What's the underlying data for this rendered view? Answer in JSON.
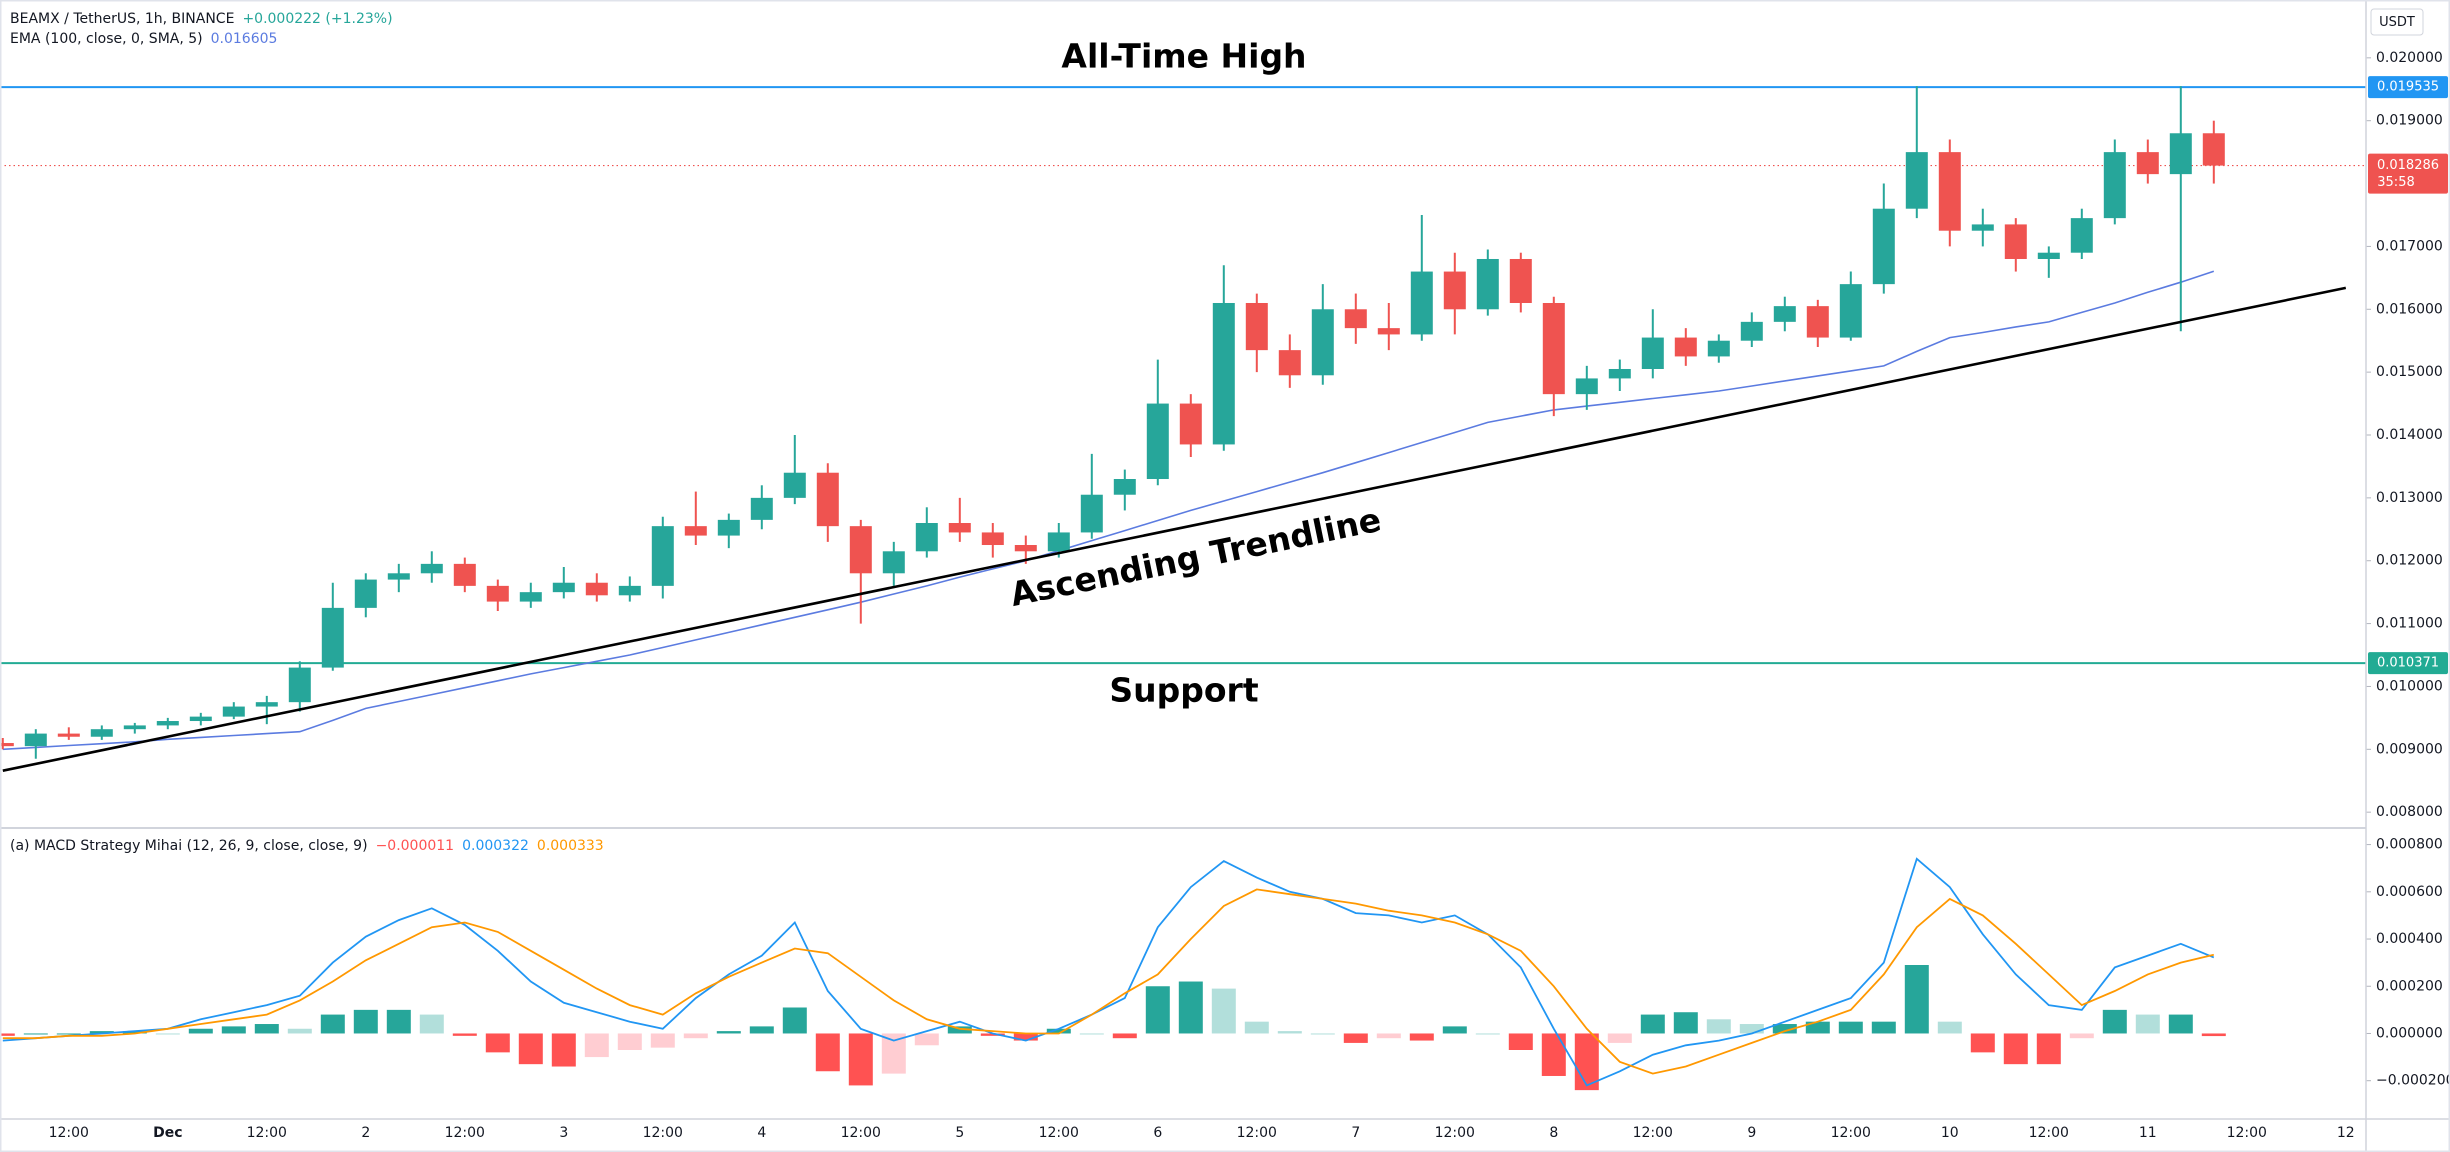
{
  "chart_data": [
    {
      "type": "candlestick",
      "title": "BEAMX / TetherUS, 1h, BINANCE",
      "change": "+0.000222 (+1.23%)",
      "currency": "USDT",
      "countdown": "35:58",
      "categories": [
        null,
        null,
        "12:00",
        null,
        null,
        "Dec",
        null,
        null,
        "12:00",
        null,
        null,
        "2",
        null,
        null,
        "12:00",
        null,
        null,
        "3",
        null,
        null,
        "12:00",
        null,
        null,
        "4",
        null,
        null,
        "12:00",
        null,
        null,
        "5",
        null,
        null,
        "12:00",
        null,
        null,
        "6",
        null,
        null,
        "12:00",
        null,
        null,
        "7",
        null,
        null,
        "12:00",
        null,
        null,
        "8",
        null,
        null,
        "12:00",
        null,
        null,
        "9",
        null,
        null,
        "12:00",
        null,
        null,
        "10",
        null,
        null,
        "12:00",
        null,
        null,
        "11",
        null,
        null,
        "12:00",
        null,
        null,
        "12"
      ],
      "open": [
        0.0091,
        0.00905,
        0.00925,
        0.0092,
        0.00932,
        0.00938,
        0.00945,
        0.00952,
        0.00968,
        0.00975,
        0.0103,
        0.01125,
        0.0117,
        0.0118,
        0.01195,
        0.0116,
        0.01135,
        0.0115,
        0.01165,
        0.01145,
        0.0116,
        0.01255,
        0.0124,
        0.01265,
        0.013,
        0.0134,
        0.01255,
        0.0118,
        0.01215,
        0.0126,
        0.01245,
        0.01225,
        0.01215,
        0.01245,
        0.01305,
        0.0133,
        0.0145,
        0.01385,
        0.0161,
        0.01535,
        0.01495,
        0.016,
        0.0157,
        0.0156,
        0.0166,
        0.016,
        0.0168,
        0.0161,
        0.01465,
        0.0149,
        0.01505,
        0.01555,
        0.01525,
        0.0155,
        0.0158,
        0.01605,
        0.01555,
        0.0164,
        0.0176,
        0.0185,
        0.01725,
        0.01735,
        0.0168,
        0.0169,
        0.01745,
        0.0185,
        0.01815,
        0.0188,
        null,
        null,
        null,
        null
      ],
      "high": [
        0.00918,
        0.00932,
        0.00935,
        0.00938,
        0.00942,
        0.0095,
        0.00958,
        0.00975,
        0.00985,
        0.0104,
        0.01165,
        0.0118,
        0.01195,
        0.01215,
        0.01205,
        0.0117,
        0.01165,
        0.0119,
        0.0118,
        0.01175,
        0.0127,
        0.0131,
        0.01275,
        0.0132,
        0.014,
        0.01355,
        0.01265,
        0.0123,
        0.01285,
        0.013,
        0.0126,
        0.0124,
        0.0126,
        0.0137,
        0.01345,
        0.0152,
        0.01465,
        0.0167,
        0.01625,
        0.0156,
        0.0164,
        0.01625,
        0.0161,
        0.0175,
        0.0169,
        0.01695,
        0.0169,
        0.0162,
        0.0151,
        0.0152,
        0.016,
        0.0157,
        0.0156,
        0.01595,
        0.0162,
        0.01615,
        0.0166,
        0.018,
        0.01955,
        0.0187,
        0.0176,
        0.01745,
        0.017,
        0.0176,
        0.0187,
        0.0187,
        0.01955,
        0.019,
        null,
        null,
        null,
        null
      ],
      "low": [
        0.009,
        0.00885,
        0.00915,
        0.00915,
        0.00925,
        0.00932,
        0.00938,
        0.00948,
        0.0094,
        0.0096,
        0.01025,
        0.0111,
        0.0115,
        0.01165,
        0.0115,
        0.0112,
        0.01125,
        0.0114,
        0.01135,
        0.01135,
        0.0114,
        0.01225,
        0.0122,
        0.0125,
        0.0129,
        0.0123,
        0.011,
        0.0116,
        0.01205,
        0.0123,
        0.01205,
        0.01195,
        0.01205,
        0.01235,
        0.0128,
        0.0132,
        0.01365,
        0.01375,
        0.015,
        0.01475,
        0.0148,
        0.01545,
        0.01535,
        0.0155,
        0.0156,
        0.0159,
        0.01595,
        0.0143,
        0.0144,
        0.0147,
        0.0149,
        0.0151,
        0.01515,
        0.0154,
        0.01565,
        0.0154,
        0.0155,
        0.01625,
        0.01745,
        0.017,
        0.017,
        0.0166,
        0.0165,
        0.0168,
        0.01735,
        0.018,
        0.01565,
        0.018,
        null,
        null,
        null,
        null
      ],
      "close": [
        0.00905,
        0.00925,
        0.0092,
        0.00932,
        0.00938,
        0.00945,
        0.00952,
        0.00968,
        0.00975,
        0.0103,
        0.01125,
        0.0117,
        0.0118,
        0.01195,
        0.0116,
        0.01135,
        0.0115,
        0.01165,
        0.01145,
        0.0116,
        0.01255,
        0.0124,
        0.01265,
        0.013,
        0.0134,
        0.01255,
        0.0118,
        0.01215,
        0.0126,
        0.01245,
        0.01225,
        0.01215,
        0.01245,
        0.01305,
        0.0133,
        0.0145,
        0.01385,
        0.0161,
        0.01535,
        0.01495,
        0.016,
        0.0157,
        0.0156,
        0.0166,
        0.016,
        0.0168,
        0.0161,
        0.01465,
        0.0149,
        0.01505,
        0.01555,
        0.01525,
        0.0155,
        0.0158,
        0.01605,
        0.01555,
        0.0164,
        0.0176,
        0.0185,
        0.01725,
        0.01735,
        0.0168,
        0.0169,
        0.01745,
        0.0185,
        0.01815,
        0.0188,
        0.018286,
        null,
        null,
        null,
        null
      ],
      "up_color": "#26a69a",
      "down_color": "#ef5350",
      "ema": {
        "name": "EMA (100, close, 0, SMA, 5)",
        "color": "#5b7be0",
        "values": [
          0.009,
          0.00903,
          0.00906,
          0.00909,
          0.00912,
          0.00916,
          0.00919,
          0.00922,
          0.00925,
          0.00928,
          0.00946,
          0.00965,
          0.00976,
          0.00987,
          0.00998,
          0.01009,
          0.0102,
          0.0103,
          0.0104,
          0.0105,
          0.01062,
          0.01074,
          0.01086,
          0.01098,
          0.0111,
          0.01122,
          0.01134,
          0.01147,
          0.0116,
          0.01174,
          0.01187,
          0.012,
          0.01216,
          0.01232,
          0.01248,
          0.01264,
          0.0128,
          0.01295,
          0.0131,
          0.01325,
          0.0134,
          0.01356,
          0.01372,
          0.01388,
          0.01404,
          0.0142,
          0.0143,
          0.0144,
          0.01446,
          0.01452,
          0.01458,
          0.01464,
          0.0147,
          0.01478,
          0.01486,
          0.01494,
          0.01502,
          0.0151,
          0.01533,
          0.01555,
          0.01563,
          0.01572,
          0.0158,
          0.01595,
          0.0161,
          0.01627,
          0.01643,
          0.016605,
          null,
          null,
          null,
          null
        ]
      },
      "levels": [
        {
          "name": "All-Time High",
          "value": 0.019535,
          "color": "#2196f3"
        },
        {
          "name": "Support",
          "value": 0.010371,
          "color": "#22ab94"
        }
      ],
      "trendline": {
        "name": "Ascending Trendline",
        "start": 0.00866,
        "end": 0.01634,
        "color": "#000000"
      },
      "ylim": [
        0.00778,
        0.02092
      ],
      "yticks": [
        {
          "value": 0.02,
          "label": "0.020000"
        },
        {
          "value": 0.019,
          "label": "0.019000"
        },
        {
          "value": 0.017,
          "label": "0.017000"
        },
        {
          "value": 0.016,
          "label": "0.016000"
        },
        {
          "value": 0.015,
          "label": "0.015000"
        },
        {
          "value": 0.014,
          "label": "0.014000"
        },
        {
          "value": 0.013,
          "label": "0.013000"
        },
        {
          "value": 0.012,
          "label": "0.012000"
        },
        {
          "value": 0.011,
          "label": "0.011000"
        },
        {
          "value": 0.01,
          "label": "0.010000"
        },
        {
          "value": 0.009,
          "label": "0.009000"
        },
        {
          "value": 0.008,
          "label": "0.008000"
        }
      ]
    },
    {
      "type": "macd",
      "title": "(a) MACD Strategy Mihai (12, 26, 9, close, close, 9)",
      "histogram": {
        "values": [
          -1e-05,
          0,
          0,
          1e-05,
          1e-05,
          0,
          2e-05,
          3e-05,
          4e-05,
          2e-05,
          8e-05,
          0.0001,
          0.0001,
          8e-05,
          -1e-05,
          -8e-05,
          -0.00013,
          -0.00014,
          -0.0001,
          -7e-05,
          -6e-05,
          -2e-05,
          1e-05,
          3e-05,
          0.00011,
          -0.00016,
          -0.00022,
          -0.00017,
          -5e-05,
          3e-05,
          -1e-05,
          -3e-05,
          2e-05,
          0,
          -2e-05,
          0.0002,
          0.00022,
          0.00019,
          5e-05,
          1e-05,
          0,
          -4e-05,
          -2e-05,
          -3e-05,
          3e-05,
          0,
          -7e-05,
          -0.00018,
          -0.00024,
          -4e-05,
          8e-05,
          9e-05,
          6e-05,
          4e-05,
          4e-05,
          5e-05,
          5e-05,
          5e-05,
          0.00029,
          5e-05,
          -8e-05,
          -0.00013,
          -0.00013,
          -2e-05,
          0.0001,
          8e-05,
          8e-05,
          -1.1e-05
        ],
        "value_labels": [
          null,
          null,
          null,
          null,
          null,
          null,
          null,
          null,
          null,
          null,
          null,
          null,
          null,
          null,
          null,
          null,
          null,
          null,
          null,
          null,
          null,
          null,
          null,
          null,
          null,
          null,
          null,
          null,
          null,
          null,
          null,
          null,
          null,
          null,
          null,
          null,
          null,
          null,
          null,
          null,
          null,
          null,
          null,
          null,
          null,
          null,
          null,
          null,
          null,
          null,
          null,
          null,
          null,
          null,
          null,
          null,
          null,
          null,
          null,
          null,
          null,
          null,
          null,
          null,
          null,
          null,
          null,
          "−0.000011"
        ],
        "colors": [
          "#26a69a",
          "#b2dfdb",
          "#ff5252",
          "#ffcdd2"
        ]
      },
      "macd": {
        "color": "#2196f3",
        "values": [
          -3e-05,
          -2e-05,
          -1e-05,
          0,
          1e-05,
          2e-05,
          6e-05,
          9e-05,
          0.00012,
          0.00016,
          0.0003,
          0.00041,
          0.00048,
          0.00053,
          0.00046,
          0.00035,
          0.00022,
          0.00013,
          9e-05,
          5e-05,
          2e-05,
          0.00015,
          0.00025,
          0.00033,
          0.00047,
          0.00018,
          2e-05,
          -3e-05,
          1e-05,
          5e-05,
          0,
          -3e-05,
          2e-05,
          8e-05,
          0.00015,
          0.00045,
          0.00062,
          0.00073,
          0.00066,
          0.0006,
          0.00057,
          0.00051,
          0.0005,
          0.00047,
          0.0005,
          0.00042,
          0.00028,
          2e-05,
          -0.00022,
          -0.00016,
          -9e-05,
          -5e-05,
          -3e-05,
          0,
          5e-05,
          0.0001,
          0.00015,
          0.0003,
          0.00074,
          0.00062,
          0.00042,
          0.00025,
          0.00012,
          0.0001,
          0.00028,
          0.00033,
          0.00038,
          0.000322
        ]
      },
      "signal": {
        "color": "#ff9800",
        "values": [
          -2e-05,
          -2e-05,
          -1e-05,
          -1e-05,
          0,
          2e-05,
          4e-05,
          6e-05,
          8e-05,
          0.00014,
          0.00022,
          0.00031,
          0.00038,
          0.00045,
          0.00047,
          0.00043,
          0.00035,
          0.00027,
          0.00019,
          0.00012,
          8e-05,
          0.00017,
          0.00024,
          0.0003,
          0.00036,
          0.00034,
          0.00024,
          0.00014,
          6e-05,
          2e-05,
          1e-05,
          0,
          0,
          8e-05,
          0.00017,
          0.00025,
          0.0004,
          0.00054,
          0.00061,
          0.00059,
          0.00057,
          0.00055,
          0.00052,
          0.0005,
          0.00047,
          0.00042,
          0.00035,
          0.0002,
          2e-05,
          -0.00012,
          -0.00017,
          -0.00014,
          -9e-05,
          -4e-05,
          1e-05,
          5e-05,
          0.0001,
          0.00025,
          0.00045,
          0.00057,
          0.0005,
          0.00038,
          0.00025,
          0.00012,
          0.00018,
          0.00025,
          0.0003,
          0.000333
        ]
      },
      "ylim": [
        -0.000358,
        0.000866
      ],
      "yticks": [
        {
          "value": 0.0008,
          "label": "0.000800"
        },
        {
          "value": 0.0006,
          "label": "0.000600"
        },
        {
          "value": 0.0004,
          "label": "0.000400"
        },
        {
          "value": 0.0002,
          "label": "0.000200"
        },
        {
          "value": 0,
          "label": "0.000000"
        },
        {
          "value": -0.0002,
          "label": "−0.000200"
        }
      ]
    }
  ]
}
